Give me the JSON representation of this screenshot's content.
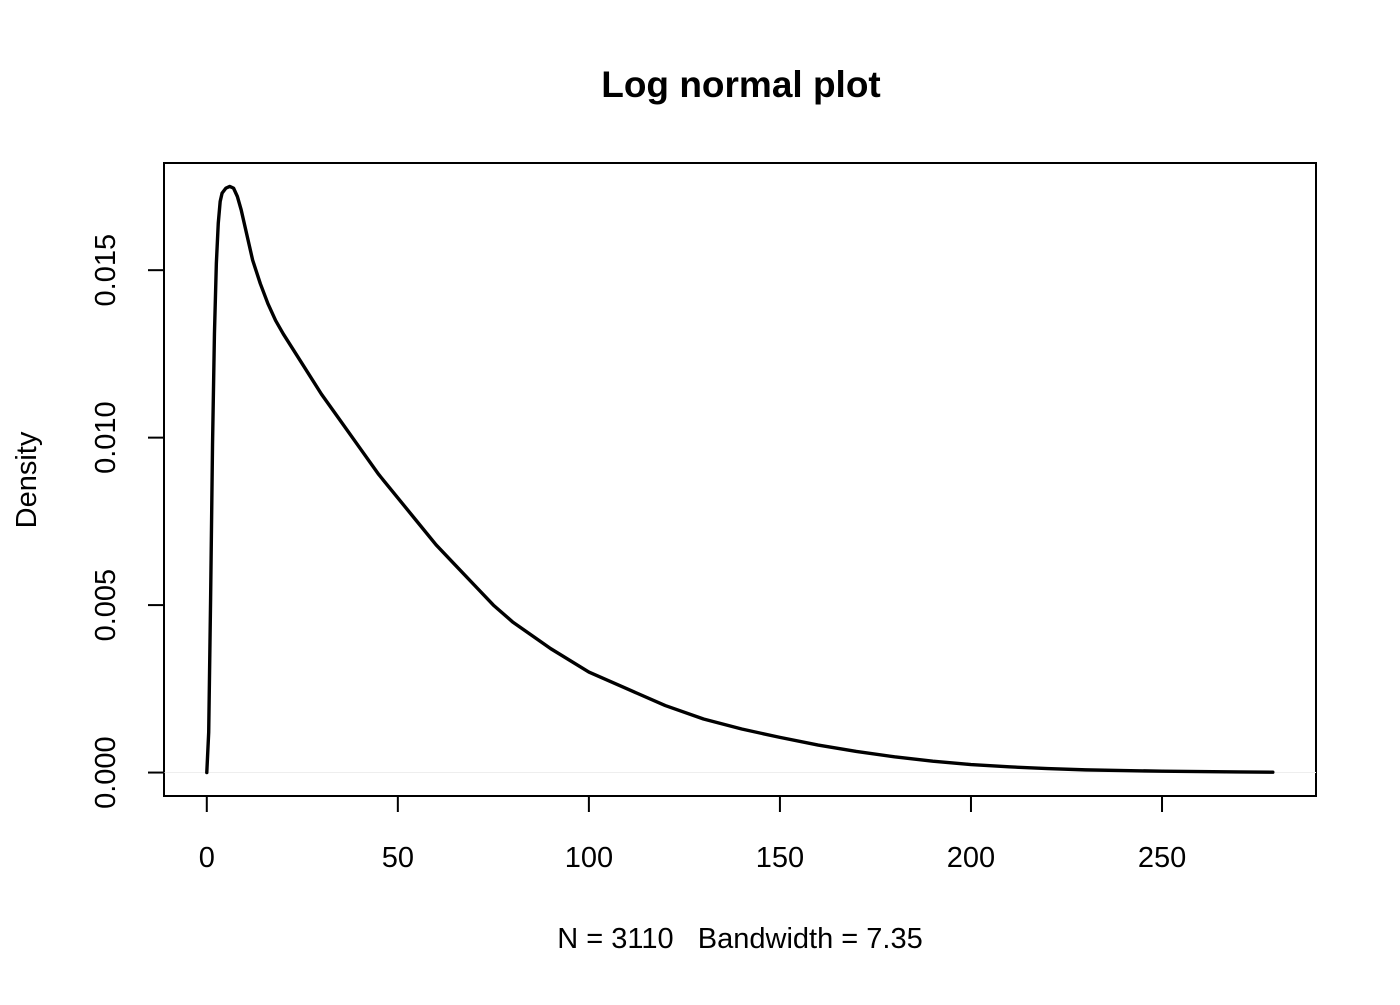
{
  "chart_data": {
    "type": "line",
    "title": "Log normal plot",
    "xlabel": "N = 3110   Bandwidth = 7.35",
    "ylabel": "Density",
    "xlim": [
      -11.2,
      290.3
    ],
    "ylim": [
      -0.0007,
      0.0182
    ],
    "x_ticks": [
      0,
      50,
      100,
      150,
      200,
      250
    ],
    "x_tick_labels": [
      "0",
      "50",
      "100",
      "150",
      "200",
      "250"
    ],
    "y_ticks": [
      0.0,
      0.005,
      0.01,
      0.015
    ],
    "y_tick_labels": [
      "0.000",
      "0.005",
      "0.010",
      "0.015"
    ],
    "grid": false,
    "legend": "none",
    "line_color": "#000000",
    "baseline_color": "#eeeeee",
    "series": [
      {
        "x": [
          0,
          0.5,
          1,
          1.5,
          2,
          2.5,
          3,
          3.5,
          4,
          5,
          6,
          7,
          8,
          9,
          10,
          11,
          12,
          14,
          16,
          18,
          20,
          25,
          30,
          35,
          40,
          45,
          50,
          55,
          60,
          65,
          70,
          75,
          80,
          90,
          100,
          110,
          120,
          130,
          140,
          150,
          160,
          170,
          180,
          190,
          200,
          210,
          220,
          230,
          240,
          250,
          260,
          270,
          279
        ],
        "y": [
          0.0,
          0.0012,
          0.0052,
          0.0098,
          0.0131,
          0.0152,
          0.0164,
          0.01705,
          0.0173,
          0.01745,
          0.0175,
          0.01745,
          0.0172,
          0.0168,
          0.0163,
          0.0158,
          0.0153,
          0.0146,
          0.014,
          0.0135,
          0.0131,
          0.0122,
          0.0113,
          0.0105,
          0.0097,
          0.0089,
          0.0082,
          0.0075,
          0.0068,
          0.0062,
          0.0056,
          0.005,
          0.0045,
          0.0037,
          0.003,
          0.0025,
          0.002,
          0.0016,
          0.0013,
          0.00105,
          0.00082,
          0.00063,
          0.00047,
          0.00034,
          0.00024,
          0.00017,
          0.00012,
          8e-05,
          6e-05,
          4e-05,
          3e-05,
          2e-05,
          1e-05
        ]
      }
    ]
  }
}
